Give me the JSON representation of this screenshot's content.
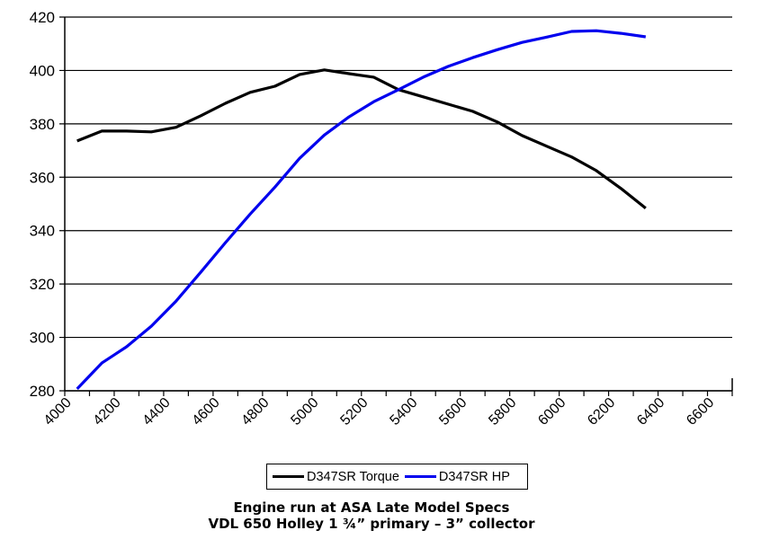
{
  "chart_data": {
    "type": "line",
    "title": "",
    "xlabel": "",
    "ylabel": "",
    "ylim": [
      280,
      420
    ],
    "yticks": [
      "280",
      "300",
      "320",
      "340",
      "360",
      "380",
      "400",
      "420"
    ],
    "xticks": [
      "4000",
      "4200",
      "4400",
      "4600",
      "4800",
      "5000",
      "5200",
      "5400",
      "5600",
      "5800",
      "6000",
      "6200",
      "6400",
      "6600"
    ],
    "xlim": [
      4000,
      6700
    ],
    "grid": true,
    "legend_position": "bottom",
    "x": [
      4050,
      4150,
      4250,
      4350,
      4450,
      4550,
      4650,
      4750,
      4850,
      4950,
      5050,
      5150,
      5250,
      5350,
      5450,
      5550,
      5650,
      5750,
      5850,
      5950,
      6050,
      6150,
      6250,
      6350
    ],
    "series": [
      {
        "name": "D347SR Torque",
        "color": "#000000",
        "values": [
          373.6,
          377.3,
          377.3,
          377.0,
          378.7,
          383.0,
          387.7,
          391.8,
          394.1,
          398.5,
          400.2,
          398.8,
          397.5,
          392.8,
          390.1,
          387.4,
          384.7,
          380.7,
          375.6,
          371.6,
          367.6,
          362.5,
          355.8,
          348.4
        ]
      },
      {
        "name": "D347SR HP",
        "color": "#0000ee",
        "values": [
          280.7,
          290.4,
          296.5,
          304.2,
          313.6,
          324.4,
          335.5,
          346.2,
          356.3,
          367.1,
          375.8,
          382.6,
          388.3,
          392.8,
          397.5,
          401.5,
          404.8,
          407.8,
          410.5,
          412.5,
          414.6,
          414.9,
          413.9,
          412.6
        ]
      }
    ]
  },
  "captions": {
    "line1": "Engine run at ASA Late Model Specs",
    "line2": "VDL 650 Holley  1 ¾” primary – 3” collector"
  }
}
